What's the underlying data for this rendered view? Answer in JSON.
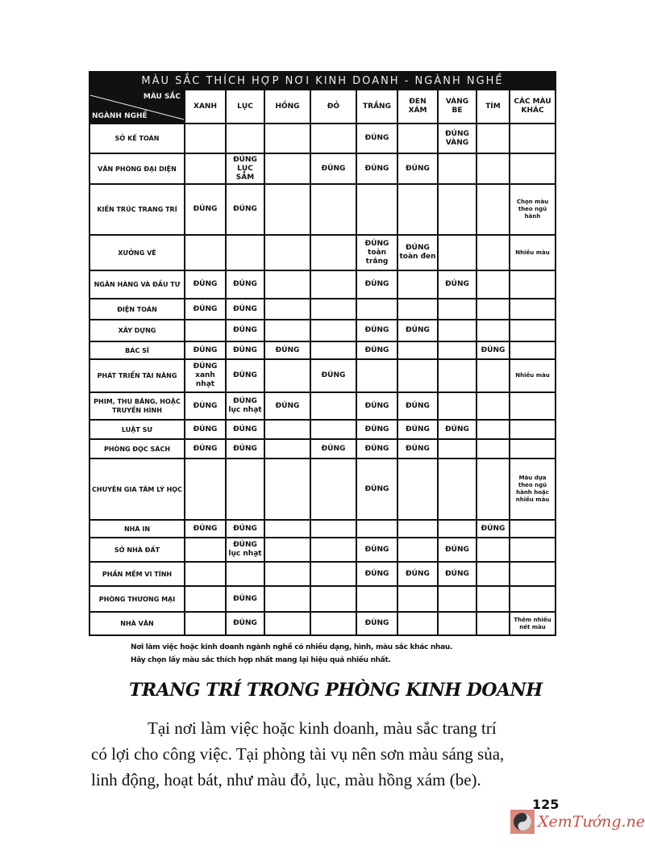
{
  "table": {
    "title": "MÀU SẮC THÍCH HỢP NƠI KINH DOANH - NGÀNH NGHỀ",
    "corner_top": "MÀU SẮC",
    "corner_bottom": "NGÀNH NGHỀ",
    "columns": [
      "XANH",
      "LỤC",
      "HỒNG",
      "ĐỎ",
      "TRẮNG",
      "ĐEN XÁM",
      "VÀNG BE",
      "TÍM",
      "CÁC MÀU KHÁC"
    ],
    "rows": [
      {
        "label": "SỞ KẾ TOÁN",
        "cells": [
          "",
          "",
          "",
          "",
          "ĐÚNG",
          "",
          "ĐÚNG VÀNG",
          "",
          ""
        ]
      },
      {
        "label": "VĂN PHÒNG ĐẠI DIỆN",
        "cells": [
          "",
          "ĐÚNG LỤC SẪM",
          "",
          "ĐÚNG",
          "ĐÚNG",
          "ĐÚNG",
          "",
          "",
          ""
        ]
      },
      {
        "label": "KIẾN TRÚC TRANG TRÍ",
        "cells": [
          "ĐÚNG",
          "ĐÚNG",
          "",
          "",
          "",
          "",
          "",
          "",
          "Chọn màu theo ngũ hành"
        ]
      },
      {
        "label": "XƯỞNG VẼ",
        "cells": [
          "",
          "",
          "",
          "",
          "ĐÚNG toàn trắng",
          "ĐÚNG toàn đen",
          "",
          "",
          "Nhiều màu"
        ]
      },
      {
        "label": "NGÂN HÀNG VÀ ĐẦU TƯ",
        "cells": [
          "ĐÚNG",
          "ĐÚNG",
          "",
          "",
          "ĐÚNG",
          "",
          "ĐÚNG",
          "",
          ""
        ]
      },
      {
        "label": "ĐIỆN TOÁN",
        "cells": [
          "ĐÚNG",
          "ĐÚNG",
          "",
          "",
          "",
          "",
          "",
          "",
          ""
        ]
      },
      {
        "label": "XÂY DỰNG",
        "cells": [
          "",
          "ĐÚNG",
          "",
          "",
          "ĐÚNG",
          "ĐÚNG",
          "",
          "",
          ""
        ]
      },
      {
        "label": "BÁC SĨ",
        "cells": [
          "ĐÚNG",
          "ĐÚNG",
          "ĐÚNG",
          "",
          "ĐÚNG",
          "",
          "",
          "ĐÚNG",
          ""
        ]
      },
      {
        "label": "PHÁT TRIỂN TÀI NĂNG",
        "cells": [
          "ĐÚNG xanh nhạt",
          "ĐÚNG",
          "",
          "ĐÚNG",
          "",
          "",
          "",
          "",
          "Nhiều màu"
        ]
      },
      {
        "label": "PHIM, THU BĂNG, HOẶC TRUYỀN HÌNH",
        "cells": [
          "ĐÚNG",
          "ĐÚNG lục nhạt",
          "ĐÚNG",
          "",
          "ĐÚNG",
          "ĐÚNG",
          "",
          "",
          ""
        ]
      },
      {
        "label": "LUẬT SƯ",
        "cells": [
          "ĐÚNG",
          "ĐÚNG",
          "",
          "",
          "ĐÚNG",
          "ĐÚNG",
          "ĐÚNG",
          "",
          ""
        ]
      },
      {
        "label": "PHÒNG ĐỌC SÁCH",
        "cells": [
          "ĐÚNG",
          "ĐÚNG",
          "",
          "ĐÚNG",
          "ĐÚNG",
          "ĐÚNG",
          "",
          "",
          ""
        ]
      },
      {
        "label": "CHUYÊN GIA TÂM LÝ HỌC",
        "cells": [
          "",
          "",
          "",
          "",
          "ĐÚNG",
          "",
          "",
          "",
          "Màu dựa theo ngũ hành hoặc nhiều màu"
        ]
      },
      {
        "label": "NHÀ IN",
        "cells": [
          "ĐÚNG",
          "ĐÚNG",
          "",
          "",
          "",
          "",
          "",
          "ĐÚNG",
          ""
        ]
      },
      {
        "label": "SỞ NHÀ ĐẤT",
        "cells": [
          "",
          "ĐÚNG lục nhạt",
          "",
          "",
          "ĐÚNG",
          "",
          "ĐÚNG",
          "",
          ""
        ]
      },
      {
        "label": "PHẦN MỀM VI TÍNH",
        "cells": [
          "",
          "",
          "",
          "",
          "ĐÚNG",
          "ĐÚNG",
          "ĐÚNG",
          "",
          ""
        ]
      },
      {
        "label": "PHÒNG THƯƠNG MẠI",
        "cells": [
          "",
          "ĐÚNG",
          "",
          "",
          "",
          "",
          "",
          "",
          ""
        ]
      },
      {
        "label": "NHÀ VĂN",
        "cells": [
          "",
          "ĐÚNG",
          "",
          "",
          "ĐÚNG",
          "",
          "",
          "",
          "Thêm nhiều nét màu"
        ]
      }
    ]
  },
  "caption": [
    "Nơi làm việc hoặc kinh doanh ngành nghề có nhiều dạng, hình, màu sắc khác nhau.",
    "Hãy chọn lấy màu sắc thích hợp nhất mang lại hiệu quả nhiều nhất."
  ],
  "heading": "TRANG TRÍ TRONG PHÒNG KINH DOANH",
  "body": [
    "Tại nơi làm việc hoặc kinh doanh, màu sắc trang trí",
    "có lợi cho công việc. Tại phòng tài vụ nên sơn màu sáng sủa,",
    "linh động, hoạt bát, như màu đỏ, lục, màu hồng xám (be)."
  ],
  "page_number": "125",
  "watermark": {
    "text": "XemTướng.net",
    "color": "#c0504a",
    "icon": "yin-yang-icon"
  }
}
